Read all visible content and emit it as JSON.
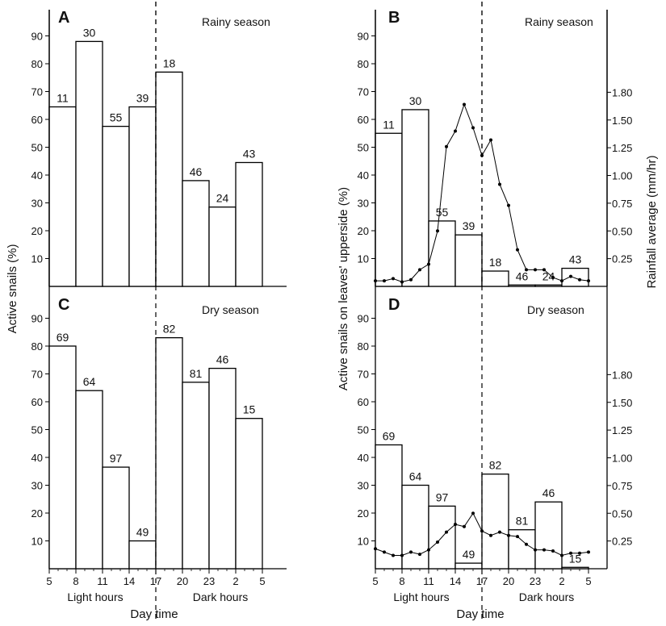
{
  "chart_data": [
    {
      "panel": "A",
      "type": "bar",
      "annotation": "Rainy season",
      "ylabel": "Active snails (%)",
      "yticks": [
        10,
        20,
        30,
        40,
        50,
        60,
        70,
        80,
        90
      ],
      "ylim": [
        0,
        100
      ],
      "xticks": [
        "5",
        "8",
        "11",
        "14",
        "17",
        "20",
        "23",
        "2",
        "5"
      ],
      "xgroups": [
        "Light hours",
        "Dark hours"
      ],
      "xlabel": "Day time",
      "bars": [
        {
          "value": 64.5,
          "label": "11"
        },
        {
          "value": 88,
          "label": "30"
        },
        {
          "value": 57.5,
          "label": "55"
        },
        {
          "value": 64.5,
          "label": "39"
        },
        {
          "value": 77,
          "label": "18"
        },
        {
          "value": 38,
          "label": "46"
        },
        {
          "value": 28.5,
          "label": "24"
        },
        {
          "value": 44.5,
          "label": "43"
        }
      ]
    },
    {
      "panel": "B",
      "type": "bar",
      "annotation": "Rainy season",
      "ylabel": "Active snails on leaves' upperside (%)",
      "y2label": "Rainfall average (mm/hr)",
      "yticks": [
        10,
        20,
        30,
        40,
        50,
        60,
        70,
        80,
        90
      ],
      "ylim": [
        0,
        100
      ],
      "y2ticks": [
        "0.25",
        "0.50",
        "0.75",
        "1.00",
        "1.25",
        "1.50",
        "1.80"
      ],
      "xticks": [
        "5",
        "8",
        "11",
        "14",
        "17",
        "20",
        "23",
        "2",
        "5"
      ],
      "xgroups": [
        "Light hours",
        "Dark hours"
      ],
      "xlabel": "Day time",
      "bars": [
        {
          "value": 55,
          "label": "11"
        },
        {
          "value": 63.5,
          "label": "30"
        },
        {
          "value": 23.5,
          "label": "55"
        },
        {
          "value": 18.5,
          "label": "39"
        },
        {
          "value": 5.5,
          "label": "18"
        },
        {
          "value": 0.5,
          "label": "46"
        },
        {
          "value": 0.5,
          "label": "24"
        },
        {
          "value": 6.5,
          "label": "43"
        }
      ],
      "line": {
        "x": [
          5,
          6,
          7,
          8,
          9,
          10,
          11,
          12,
          13,
          14,
          15,
          16,
          17,
          18,
          19,
          20,
          21,
          22,
          23,
          24,
          25,
          26,
          27,
          28,
          29
        ],
        "y": [
          0.05,
          0.05,
          0.07,
          0.04,
          0.06,
          0.15,
          0.2,
          0.5,
          1.26,
          1.4,
          1.64,
          1.43,
          1.18,
          1.32,
          0.92,
          0.73,
          0.33,
          0.15,
          0.15,
          0.15,
          0.08,
          0.05,
          0.09,
          0.06,
          0.05
        ]
      }
    },
    {
      "panel": "C",
      "type": "bar",
      "annotation": "Dry season",
      "ylabel": "Active snails (%)",
      "yticks": [
        10,
        20,
        30,
        40,
        50,
        60,
        70,
        80,
        90
      ],
      "ylim": [
        0,
        100
      ],
      "xticks": [
        "5",
        "8",
        "11",
        "14",
        "17",
        "20",
        "23",
        "2",
        "5"
      ],
      "xgroups": [
        "Light hours",
        "Dark hours"
      ],
      "xlabel": "Day time",
      "bars": [
        {
          "value": 80,
          "label": "69"
        },
        {
          "value": 64,
          "label": "64"
        },
        {
          "value": 36.5,
          "label": "97"
        },
        {
          "value": 10,
          "label": "49"
        },
        {
          "value": 83,
          "label": "82"
        },
        {
          "value": 67,
          "label": "81"
        },
        {
          "value": 72,
          "label": "46"
        },
        {
          "value": 54,
          "label": "15"
        }
      ]
    },
    {
      "panel": "D",
      "type": "bar",
      "annotation": "Dry season",
      "ylabel": "Active snails on leaves' upperside (%)",
      "y2label": "Rainfall average (mm/hr)",
      "yticks": [
        10,
        20,
        30,
        40,
        50,
        60,
        70,
        80,
        90
      ],
      "ylim": [
        0,
        100
      ],
      "y2ticks": [
        "0.25",
        "0.50",
        "0.75",
        "1.00",
        "1.25",
        "1.50",
        "1.80"
      ],
      "xticks": [
        "5",
        "8",
        "11",
        "14",
        "17",
        "20",
        "23",
        "2",
        "5"
      ],
      "xgroups": [
        "Light hours",
        "Dark hours"
      ],
      "xlabel": "Day time",
      "bars": [
        {
          "value": 44.5,
          "label": "69"
        },
        {
          "value": 30,
          "label": "64"
        },
        {
          "value": 22.5,
          "label": "97"
        },
        {
          "value": 2,
          "label": "49"
        },
        {
          "value": 34,
          "label": "82"
        },
        {
          "value": 14,
          "label": "81"
        },
        {
          "value": 24,
          "label": "46"
        },
        {
          "value": 0.5,
          "label": "15"
        }
      ],
      "line": {
        "x": [
          5,
          6,
          7,
          8,
          9,
          10,
          11,
          12,
          13,
          14,
          15,
          16,
          17,
          18,
          19,
          20,
          21,
          22,
          23,
          24,
          25,
          26,
          27,
          28,
          29
        ],
        "y": [
          0.18,
          0.15,
          0.12,
          0.12,
          0.15,
          0.13,
          0.17,
          0.24,
          0.33,
          0.4,
          0.38,
          0.5,
          0.34,
          0.3,
          0.33,
          0.3,
          0.29,
          0.22,
          0.17,
          0.17,
          0.16,
          0.12,
          0.14,
          0.14,
          0.15
        ]
      }
    }
  ]
}
